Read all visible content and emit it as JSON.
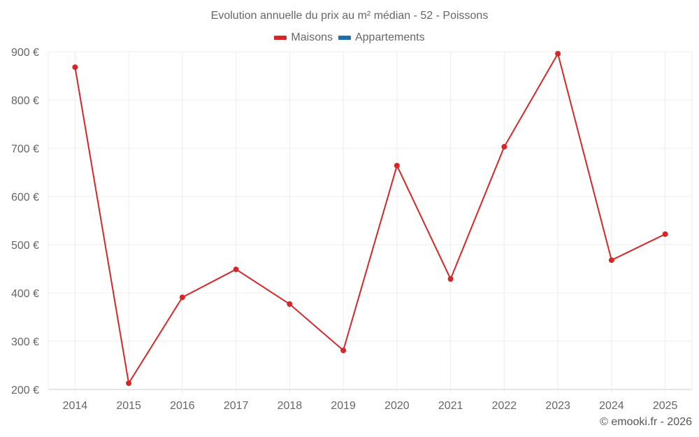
{
  "title": "Evolution annuelle du prix au m² médian - 52 - Poissons",
  "legend": [
    {
      "label": "Maisons",
      "color": "#d62728"
    },
    {
      "label": "Appartements",
      "color": "#1f6fa8"
    }
  ],
  "footer": "© emooki.fr - 2026",
  "chart_data": {
    "type": "line",
    "title": "Evolution annuelle du prix au m² médian - 52 - Poissons",
    "xlabel": "",
    "ylabel": "",
    "categories": [
      "2014",
      "2015",
      "2016",
      "2017",
      "2018",
      "2019",
      "2020",
      "2021",
      "2022",
      "2023",
      "2024",
      "2025"
    ],
    "series": [
      {
        "name": "Maisons",
        "color": "#d62728",
        "values": [
          868,
          213,
          391,
          449,
          377,
          281,
          664,
          429,
          703,
          896,
          468,
          522
        ]
      },
      {
        "name": "Appartements",
        "color": "#1f6fa8",
        "values": []
      }
    ],
    "yticks": [
      200,
      300,
      400,
      500,
      600,
      700,
      800,
      900
    ],
    "ytick_labels": [
      "200 €",
      "300 €",
      "400 €",
      "500 €",
      "600 €",
      "700 €",
      "800 €",
      "900 €"
    ],
    "ylim": [
      200,
      900
    ],
    "grid": true,
    "legend_position": "top"
  }
}
